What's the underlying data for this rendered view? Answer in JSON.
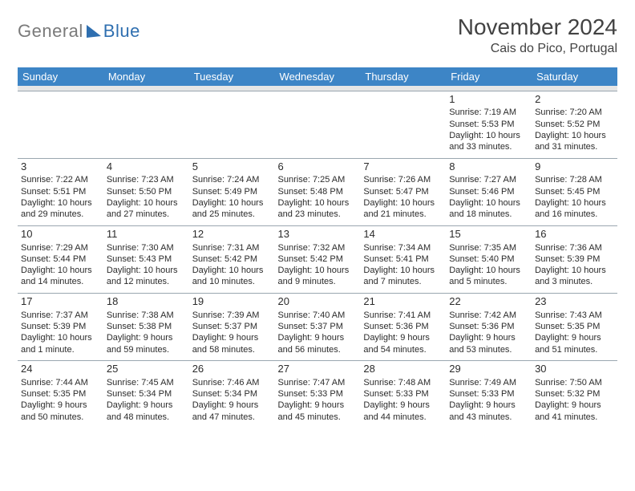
{
  "brand": {
    "gray": "General",
    "blue": "Blue"
  },
  "header": {
    "title": "November 2024",
    "location": "Cais do Pico, Portugal"
  },
  "weekdays": [
    "Sunday",
    "Monday",
    "Tuesday",
    "Wednesday",
    "Thursday",
    "Friday",
    "Saturday"
  ],
  "colors": {
    "header_bg": "#3d85c6",
    "header_fg": "#ffffff",
    "spacer_bg": "#e6e6e6",
    "rule": "#9aa7b0",
    "text": "#2b2b2b",
    "title": "#424242",
    "logo_gray": "#7a7a7a",
    "logo_blue": "#2f6fb0"
  },
  "weeks": [
    [
      null,
      null,
      null,
      null,
      null,
      {
        "n": "1",
        "sr": "Sunrise: 7:19 AM",
        "ss": "Sunset: 5:53 PM",
        "d1": "Daylight: 10 hours",
        "d2": "and 33 minutes."
      },
      {
        "n": "2",
        "sr": "Sunrise: 7:20 AM",
        "ss": "Sunset: 5:52 PM",
        "d1": "Daylight: 10 hours",
        "d2": "and 31 minutes."
      }
    ],
    [
      {
        "n": "3",
        "sr": "Sunrise: 7:22 AM",
        "ss": "Sunset: 5:51 PM",
        "d1": "Daylight: 10 hours",
        "d2": "and 29 minutes."
      },
      {
        "n": "4",
        "sr": "Sunrise: 7:23 AM",
        "ss": "Sunset: 5:50 PM",
        "d1": "Daylight: 10 hours",
        "d2": "and 27 minutes."
      },
      {
        "n": "5",
        "sr": "Sunrise: 7:24 AM",
        "ss": "Sunset: 5:49 PM",
        "d1": "Daylight: 10 hours",
        "d2": "and 25 minutes."
      },
      {
        "n": "6",
        "sr": "Sunrise: 7:25 AM",
        "ss": "Sunset: 5:48 PM",
        "d1": "Daylight: 10 hours",
        "d2": "and 23 minutes."
      },
      {
        "n": "7",
        "sr": "Sunrise: 7:26 AM",
        "ss": "Sunset: 5:47 PM",
        "d1": "Daylight: 10 hours",
        "d2": "and 21 minutes."
      },
      {
        "n": "8",
        "sr": "Sunrise: 7:27 AM",
        "ss": "Sunset: 5:46 PM",
        "d1": "Daylight: 10 hours",
        "d2": "and 18 minutes."
      },
      {
        "n": "9",
        "sr": "Sunrise: 7:28 AM",
        "ss": "Sunset: 5:45 PM",
        "d1": "Daylight: 10 hours",
        "d2": "and 16 minutes."
      }
    ],
    [
      {
        "n": "10",
        "sr": "Sunrise: 7:29 AM",
        "ss": "Sunset: 5:44 PM",
        "d1": "Daylight: 10 hours",
        "d2": "and 14 minutes."
      },
      {
        "n": "11",
        "sr": "Sunrise: 7:30 AM",
        "ss": "Sunset: 5:43 PM",
        "d1": "Daylight: 10 hours",
        "d2": "and 12 minutes."
      },
      {
        "n": "12",
        "sr": "Sunrise: 7:31 AM",
        "ss": "Sunset: 5:42 PM",
        "d1": "Daylight: 10 hours",
        "d2": "and 10 minutes."
      },
      {
        "n": "13",
        "sr": "Sunrise: 7:32 AM",
        "ss": "Sunset: 5:42 PM",
        "d1": "Daylight: 10 hours",
        "d2": "and 9 minutes."
      },
      {
        "n": "14",
        "sr": "Sunrise: 7:34 AM",
        "ss": "Sunset: 5:41 PM",
        "d1": "Daylight: 10 hours",
        "d2": "and 7 minutes."
      },
      {
        "n": "15",
        "sr": "Sunrise: 7:35 AM",
        "ss": "Sunset: 5:40 PM",
        "d1": "Daylight: 10 hours",
        "d2": "and 5 minutes."
      },
      {
        "n": "16",
        "sr": "Sunrise: 7:36 AM",
        "ss": "Sunset: 5:39 PM",
        "d1": "Daylight: 10 hours",
        "d2": "and 3 minutes."
      }
    ],
    [
      {
        "n": "17",
        "sr": "Sunrise: 7:37 AM",
        "ss": "Sunset: 5:39 PM",
        "d1": "Daylight: 10 hours",
        "d2": "and 1 minute."
      },
      {
        "n": "18",
        "sr": "Sunrise: 7:38 AM",
        "ss": "Sunset: 5:38 PM",
        "d1": "Daylight: 9 hours",
        "d2": "and 59 minutes."
      },
      {
        "n": "19",
        "sr": "Sunrise: 7:39 AM",
        "ss": "Sunset: 5:37 PM",
        "d1": "Daylight: 9 hours",
        "d2": "and 58 minutes."
      },
      {
        "n": "20",
        "sr": "Sunrise: 7:40 AM",
        "ss": "Sunset: 5:37 PM",
        "d1": "Daylight: 9 hours",
        "d2": "and 56 minutes."
      },
      {
        "n": "21",
        "sr": "Sunrise: 7:41 AM",
        "ss": "Sunset: 5:36 PM",
        "d1": "Daylight: 9 hours",
        "d2": "and 54 minutes."
      },
      {
        "n": "22",
        "sr": "Sunrise: 7:42 AM",
        "ss": "Sunset: 5:36 PM",
        "d1": "Daylight: 9 hours",
        "d2": "and 53 minutes."
      },
      {
        "n": "23",
        "sr": "Sunrise: 7:43 AM",
        "ss": "Sunset: 5:35 PM",
        "d1": "Daylight: 9 hours",
        "d2": "and 51 minutes."
      }
    ],
    [
      {
        "n": "24",
        "sr": "Sunrise: 7:44 AM",
        "ss": "Sunset: 5:35 PM",
        "d1": "Daylight: 9 hours",
        "d2": "and 50 minutes."
      },
      {
        "n": "25",
        "sr": "Sunrise: 7:45 AM",
        "ss": "Sunset: 5:34 PM",
        "d1": "Daylight: 9 hours",
        "d2": "and 48 minutes."
      },
      {
        "n": "26",
        "sr": "Sunrise: 7:46 AM",
        "ss": "Sunset: 5:34 PM",
        "d1": "Daylight: 9 hours",
        "d2": "and 47 minutes."
      },
      {
        "n": "27",
        "sr": "Sunrise: 7:47 AM",
        "ss": "Sunset: 5:33 PM",
        "d1": "Daylight: 9 hours",
        "d2": "and 45 minutes."
      },
      {
        "n": "28",
        "sr": "Sunrise: 7:48 AM",
        "ss": "Sunset: 5:33 PM",
        "d1": "Daylight: 9 hours",
        "d2": "and 44 minutes."
      },
      {
        "n": "29",
        "sr": "Sunrise: 7:49 AM",
        "ss": "Sunset: 5:33 PM",
        "d1": "Daylight: 9 hours",
        "d2": "and 43 minutes."
      },
      {
        "n": "30",
        "sr": "Sunrise: 7:50 AM",
        "ss": "Sunset: 5:32 PM",
        "d1": "Daylight: 9 hours",
        "d2": "and 41 minutes."
      }
    ]
  ]
}
